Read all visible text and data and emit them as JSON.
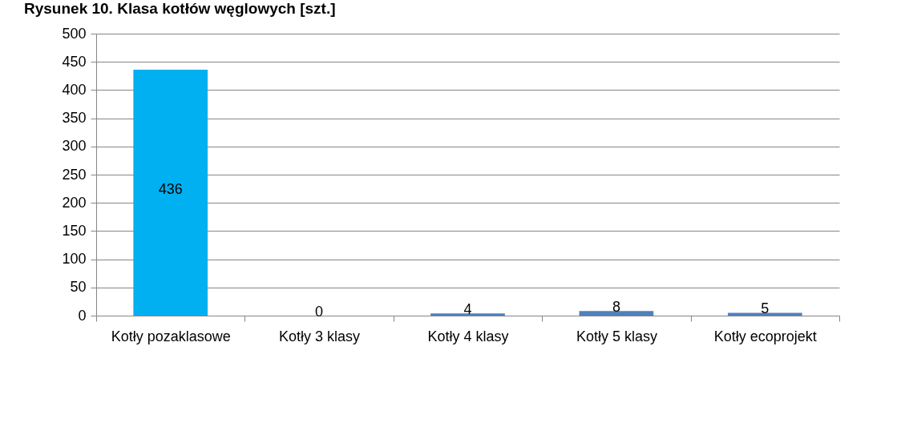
{
  "chart_data": {
    "type": "bar",
    "title": "Rysunek 10. Klasa kotłów węglowych [szt.]",
    "categories": [
      "Kotły pozaklasowe",
      "Kotły 3 klasy",
      "Kotły 4 klasy",
      "Kotły 5 klasy",
      "Kotły ecoprojekt"
    ],
    "values": [
      436,
      0,
      4,
      8,
      5
    ],
    "colors": [
      "#00b0f0",
      "#4f81bd",
      "#4f81bd",
      "#4f81bd",
      "#4f81bd"
    ],
    "ylim": [
      0,
      500
    ],
    "yticks": [
      0,
      50,
      100,
      150,
      200,
      250,
      300,
      350,
      400,
      450,
      500
    ],
    "grid": "y",
    "data_labels": true
  }
}
